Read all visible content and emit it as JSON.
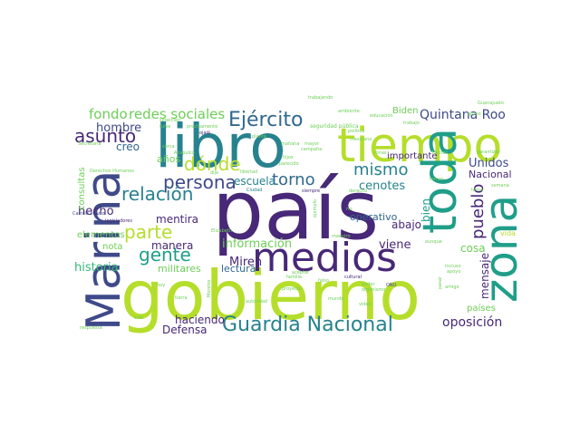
{
  "cloud": {
    "colors": {
      "dark_purple": "#482878",
      "indigo": "#3e4a89",
      "blue": "#31688e",
      "teal": "#26828e",
      "green": "#1f9e89",
      "seafoam": "#35b779",
      "light_green": "#6ece58",
      "lime": "#b5de2b"
    },
    "words": [
      {
        "text": "país",
        "color": "#482878"
      },
      {
        "text": "gobierno",
        "color": "#b5de2b"
      },
      {
        "text": "libro",
        "color": "#26828e"
      },
      {
        "text": "medios",
        "color": "#482878"
      },
      {
        "text": "Marina",
        "color": "#3e4a89"
      },
      {
        "text": "tiempo",
        "color": "#b5de2b"
      },
      {
        "text": "toda",
        "color": "#1f9e89"
      },
      {
        "text": "zona",
        "color": "#1f9e89"
      },
      {
        "text": "Guardia Nacional",
        "color": "#26828e"
      },
      {
        "text": "Ejército",
        "color": "#31688e"
      },
      {
        "text": "dónde",
        "color": "#b5de2b"
      },
      {
        "text": "persona",
        "color": "#3e4a89"
      },
      {
        "text": "asunto",
        "color": "#482878"
      },
      {
        "text": "relación",
        "color": "#26828e"
      },
      {
        "text": "parte",
        "color": "#b5de2b"
      },
      {
        "text": "gente",
        "color": "#1f9e89"
      },
      {
        "text": "mismo",
        "color": "#26828e"
      },
      {
        "text": "torno",
        "color": "#31688e"
      },
      {
        "text": "pueblo",
        "color": "#482878"
      },
      {
        "text": "fondo",
        "color": "#6ece58"
      },
      {
        "text": "redes sociales",
        "color": "#6ece58"
      },
      {
        "text": "Quintana Roo",
        "color": "#3e4a89"
      },
      {
        "text": "hombre",
        "color": "#3e4a89"
      },
      {
        "text": "creo",
        "color": "#31688e"
      },
      {
        "text": "años",
        "color": "#6ece58"
      },
      {
        "text": "escuela",
        "color": "#26828e"
      },
      {
        "text": "cenotes",
        "color": "#26828e"
      },
      {
        "text": "Unidos",
        "color": "#3e4a89"
      },
      {
        "text": "Nacional",
        "color": "#482878"
      },
      {
        "text": "hecho",
        "color": "#482878"
      },
      {
        "text": "mentira",
        "color": "#482878"
      },
      {
        "text": "manera",
        "color": "#482878"
      },
      {
        "text": "información",
        "color": "#6ece58"
      },
      {
        "text": "Miren",
        "color": "#482878"
      },
      {
        "text": "viene",
        "color": "#482878"
      },
      {
        "text": "cosa",
        "color": "#6ece58"
      },
      {
        "text": "historia",
        "color": "#35b779"
      },
      {
        "text": "militares",
        "color": "#6ece58"
      },
      {
        "text": "lectura",
        "color": "#31688e"
      },
      {
        "text": "haciendo",
        "color": "#482878"
      },
      {
        "text": "Defensa",
        "color": "#482878"
      },
      {
        "text": "oposición",
        "color": "#482878"
      },
      {
        "text": "mensaje",
        "color": "#482878"
      },
      {
        "text": "bien",
        "color": "#1f9e89"
      },
      {
        "text": "abajo",
        "color": "#482878"
      },
      {
        "text": "operativo",
        "color": "#31688e"
      },
      {
        "text": "importante",
        "color": "#482878"
      },
      {
        "text": "Biden",
        "color": "#6ece58"
      },
      {
        "text": "nota",
        "color": "#6ece58"
      },
      {
        "text": "elementos",
        "color": "#6ece58"
      },
      {
        "text": "consultas",
        "color": "#6ece58"
      },
      {
        "text": "países",
        "color": "#6ece58"
      },
      {
        "text": "vida",
        "color": "#b5de2b"
      },
      {
        "text": "selección",
        "color": "#6ece58"
      },
      {
        "text": "fuive",
        "color": "#6ece58"
      },
      {
        "text": "precisamente",
        "color": "#6ece58"
      },
      {
        "text": "ojalá",
        "color": "#482878"
      },
      {
        "text": "cerca",
        "color": "#6ece58"
      },
      {
        "text": "seguridad pública",
        "color": "#6ece58"
      },
      {
        "text": "política",
        "color": "#6ece58"
      },
      {
        "text": "mexicano",
        "color": "#6ece58"
      },
      {
        "text": "educación",
        "color": "#6ece58"
      },
      {
        "text": "trabajo",
        "color": "#6ece58"
      },
      {
        "text": "Secretaría",
        "color": "#6ece58"
      },
      {
        "text": "Derechos Humanos",
        "color": "#6ece58"
      },
      {
        "text": "Carrillo Puerto",
        "color": "#3e4a89"
      },
      {
        "text": "dije",
        "color": "#6ece58"
      },
      {
        "text": "Ciudad",
        "color": "#26828e"
      },
      {
        "text": "siempre",
        "color": "#482878"
      },
      {
        "text": "derecho",
        "color": "#6ece58"
      },
      {
        "text": "legisladores",
        "color": "#482878"
      },
      {
        "text": "río",
        "color": "#6ece58"
      },
      {
        "text": "cultural",
        "color": "#482878"
      },
      {
        "text": "maestro",
        "color": "#6ece58"
      },
      {
        "text": "aunque",
        "color": "#6ece58"
      },
      {
        "text": "aceptar",
        "color": "#6ece58"
      },
      {
        "text": "falso",
        "color": "#6ece58"
      },
      {
        "text": "video",
        "color": "#6ece58"
      },
      {
        "text": "amigo",
        "color": "#6ece58"
      },
      {
        "text": "incluso",
        "color": "#6ece58"
      },
      {
        "text": "apoyo",
        "color": "#6ece58"
      },
      {
        "text": "ONU",
        "color": "#3e4a89"
      },
      {
        "text": "poder",
        "color": "#6ece58"
      },
      {
        "text": "organismo",
        "color": "#6ece58"
      },
      {
        "text": "mundo",
        "color": "#6ece58"
      },
      {
        "text": "tierra",
        "color": "#6ece58"
      },
      {
        "text": "sólo",
        "color": "#6ece58"
      },
      {
        "text": "respuesta",
        "color": "#6ece58"
      },
      {
        "text": "hoy",
        "color": "#6ece58"
      },
      {
        "text": "Morelos",
        "color": "#6ece58"
      },
      {
        "text": "familia",
        "color": "#6ece58"
      },
      {
        "text": "proyecto",
        "color": "#6ece58"
      },
      {
        "text": "semana",
        "color": "#6ece58"
      },
      {
        "text": "pasar",
        "color": "#6ece58"
      },
      {
        "text": "tema",
        "color": "#6ece58"
      },
      {
        "text": "temas",
        "color": "#6ece58"
      },
      {
        "text": "Héctor",
        "color": "#6ece58"
      },
      {
        "text": "garantizar",
        "color": "#6ece58"
      },
      {
        "text": "Guanajuato",
        "color": "#6ece58"
      },
      {
        "text": "zonas",
        "color": "#6ece58"
      },
      {
        "text": "Acapulco",
        "color": "#6ece58"
      },
      {
        "text": "Elizabeth",
        "color": "#6ece58"
      },
      {
        "text": "campaña",
        "color": "#6ece58"
      },
      {
        "text": "trabajando",
        "color": "#6ece58"
      },
      {
        "text": "mañana",
        "color": "#6ece58"
      },
      {
        "text": "parecido",
        "color": "#6ece58"
      },
      {
        "text": "ambiente",
        "color": "#6ece58"
      },
      {
        "text": "libertad",
        "color": "#6ece58"
      },
      {
        "text": "hijos",
        "color": "#6ece58"
      },
      {
        "text": "ejemplo",
        "color": "#6ece58"
      },
      {
        "text": "planta",
        "color": "#6ece58"
      },
      {
        "text": "autoridad",
        "color": "#6ece58"
      },
      {
        "text": "mayor",
        "color": "#6ece58"
      },
      {
        "text": "grupo",
        "color": "#6ece58"
      }
    ]
  }
}
